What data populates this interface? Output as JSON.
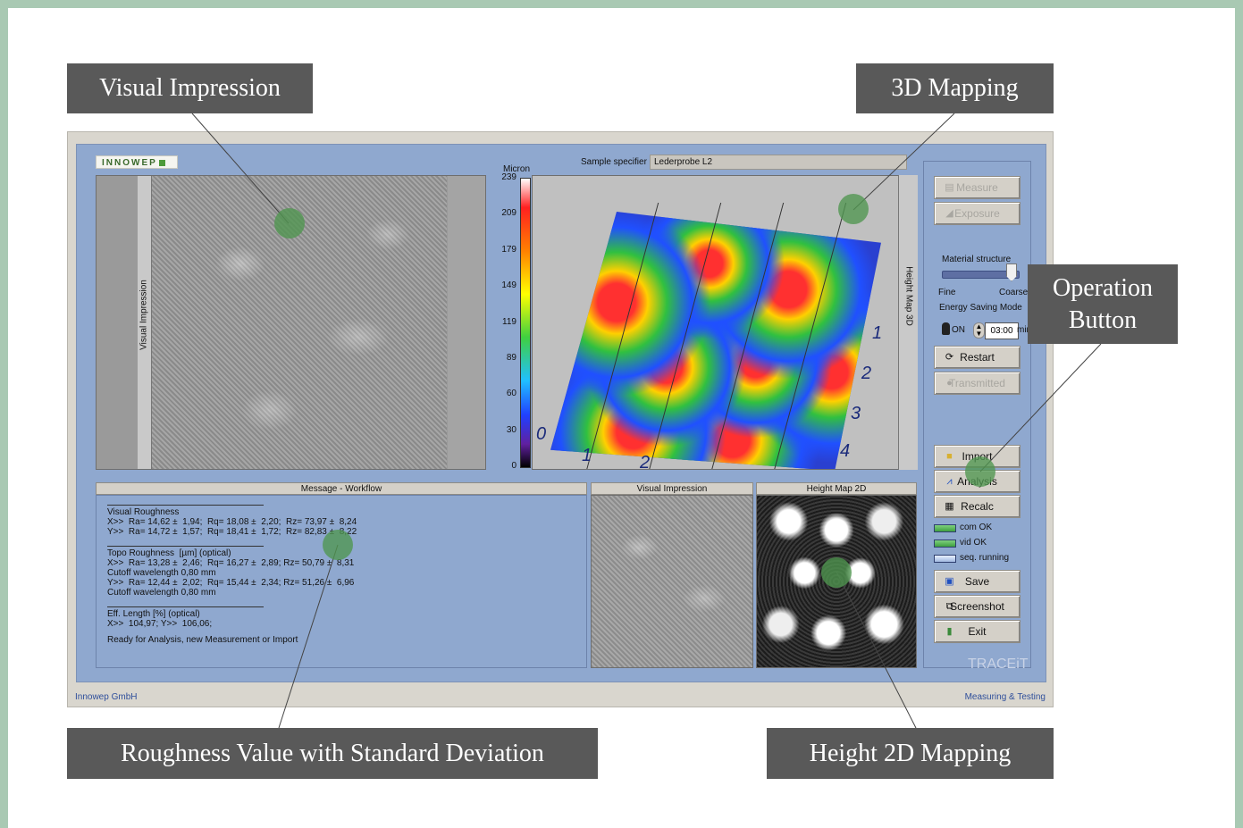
{
  "callouts": {
    "visual_impression": "Visual Impression",
    "mapping_3d": "3D Mapping",
    "operation_button": "Operation Button",
    "roughness_value": "Roughness Value with Standard Deviation",
    "height_2d": "Height 2D Mapping"
  },
  "app": {
    "logo": "INNOWEP",
    "sample_label": "Sample specifier :",
    "sample_value": "Lederprobe L2",
    "visual_side_label": "Visual Impression",
    "map3d_side_label": "Height Map 3D",
    "colorbar": {
      "unit": "Micron",
      "ticks": [
        "239",
        "209",
        "179",
        "149",
        "119",
        "89",
        "60",
        "30",
        "0"
      ]
    },
    "axis_numbers": [
      "1",
      "2",
      "3",
      "4",
      "0",
      "1",
      "2"
    ],
    "message_header": "Message - Workflow",
    "thumb_visual_header": "Visual Impression",
    "thumb_height_header": "Height Map 2D",
    "message": {
      "visual_title": "Visual Roughness",
      "visual_x": "X>>  Ra= 14,62 ±  1,94;  Rq= 18,08 ±  2,20;  Rz= 73,97 ±  8,24",
      "visual_y": "Y>>  Ra= 14,72 ±  1,57;  Rq= 18,41 ±  1,72;  Rz= 82,83 ±  8,22",
      "topo_title": "Topo Roughness  [µm] (optical)",
      "topo_x": "X>>  Ra= 13,28 ±  2,46;  Rq= 16,27 ±  2,89; Rz= 50,79 ±  8,31",
      "cutoff_1": "Cutoff wavelength 0,80 mm",
      "topo_y": "Y>>  Ra= 12,44 ±  2,02;  Rq= 15,44 ±  2,34; Rz= 51,26 ±  6,96",
      "cutoff_2": "Cutoff wavelength 0,80 mm",
      "eff_title": "Eff. Length [%] (optical)",
      "eff_values": "X>>  104,97; Y>>  106,06;",
      "status": "Ready for Analysis, new Measurement or Import"
    },
    "controls": {
      "measure": "Measure",
      "exposure": "Exposure",
      "material_structure": "Material structure",
      "fine": "Fine",
      "coarse": "Coarse",
      "energy_saving": "Energy Saving Mode",
      "on": "ON",
      "time": "03:00",
      "min": "min",
      "restart": "Restart",
      "transmitted": "Transmitted",
      "import": "Import",
      "analysis": "Analysis",
      "recalc": "Recalc",
      "status_com": "com OK",
      "status_vid": "vid OK",
      "status_seq": "seq. running",
      "save": "Save",
      "screenshot": "Screenshot",
      "exit": "Exit"
    },
    "brand": "TRACEiT",
    "footer_left": "Innowep GmbH",
    "footer_right": "Measuring & Testing"
  },
  "colors": {
    "frame": "#a9c9b3",
    "panel_bg": "#8fa8cf",
    "callout_bg": "#595959",
    "marker": "#5a9a5a"
  }
}
